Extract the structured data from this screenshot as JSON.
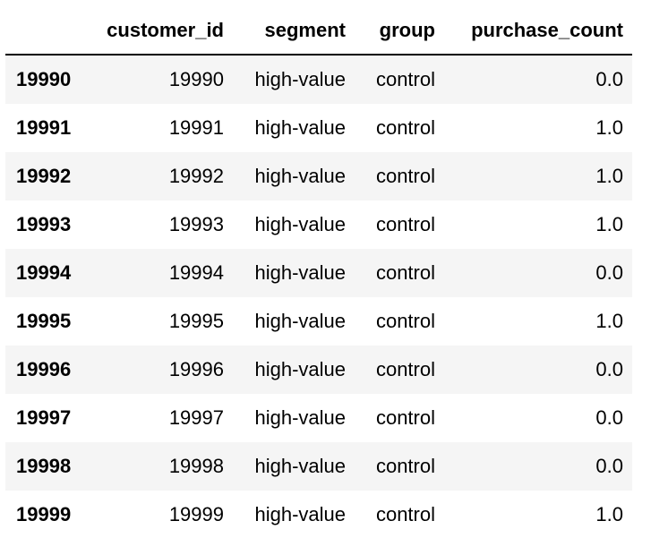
{
  "table": {
    "columns": [
      "",
      "customer_id",
      "segment",
      "group",
      "purchase_count"
    ],
    "rows": [
      {
        "index": "19990",
        "customer_id": "19990",
        "segment": "high-value",
        "group": "control",
        "purchase_count": "0.0"
      },
      {
        "index": "19991",
        "customer_id": "19991",
        "segment": "high-value",
        "group": "control",
        "purchase_count": "1.0"
      },
      {
        "index": "19992",
        "customer_id": "19992",
        "segment": "high-value",
        "group": "control",
        "purchase_count": "1.0"
      },
      {
        "index": "19993",
        "customer_id": "19993",
        "segment": "high-value",
        "group": "control",
        "purchase_count": "1.0"
      },
      {
        "index": "19994",
        "customer_id": "19994",
        "segment": "high-value",
        "group": "control",
        "purchase_count": "0.0"
      },
      {
        "index": "19995",
        "customer_id": "19995",
        "segment": "high-value",
        "group": "control",
        "purchase_count": "1.0"
      },
      {
        "index": "19996",
        "customer_id": "19996",
        "segment": "high-value",
        "group": "control",
        "purchase_count": "0.0"
      },
      {
        "index": "19997",
        "customer_id": "19997",
        "segment": "high-value",
        "group": "control",
        "purchase_count": "0.0"
      },
      {
        "index": "19998",
        "customer_id": "19998",
        "segment": "high-value",
        "group": "control",
        "purchase_count": "0.0"
      },
      {
        "index": "19999",
        "customer_id": "19999",
        "segment": "high-value",
        "group": "control",
        "purchase_count": "1.0"
      }
    ]
  },
  "colors": {
    "stripe": "#f5f5f5",
    "background": "#ffffff",
    "header_rule": "#000000"
  }
}
